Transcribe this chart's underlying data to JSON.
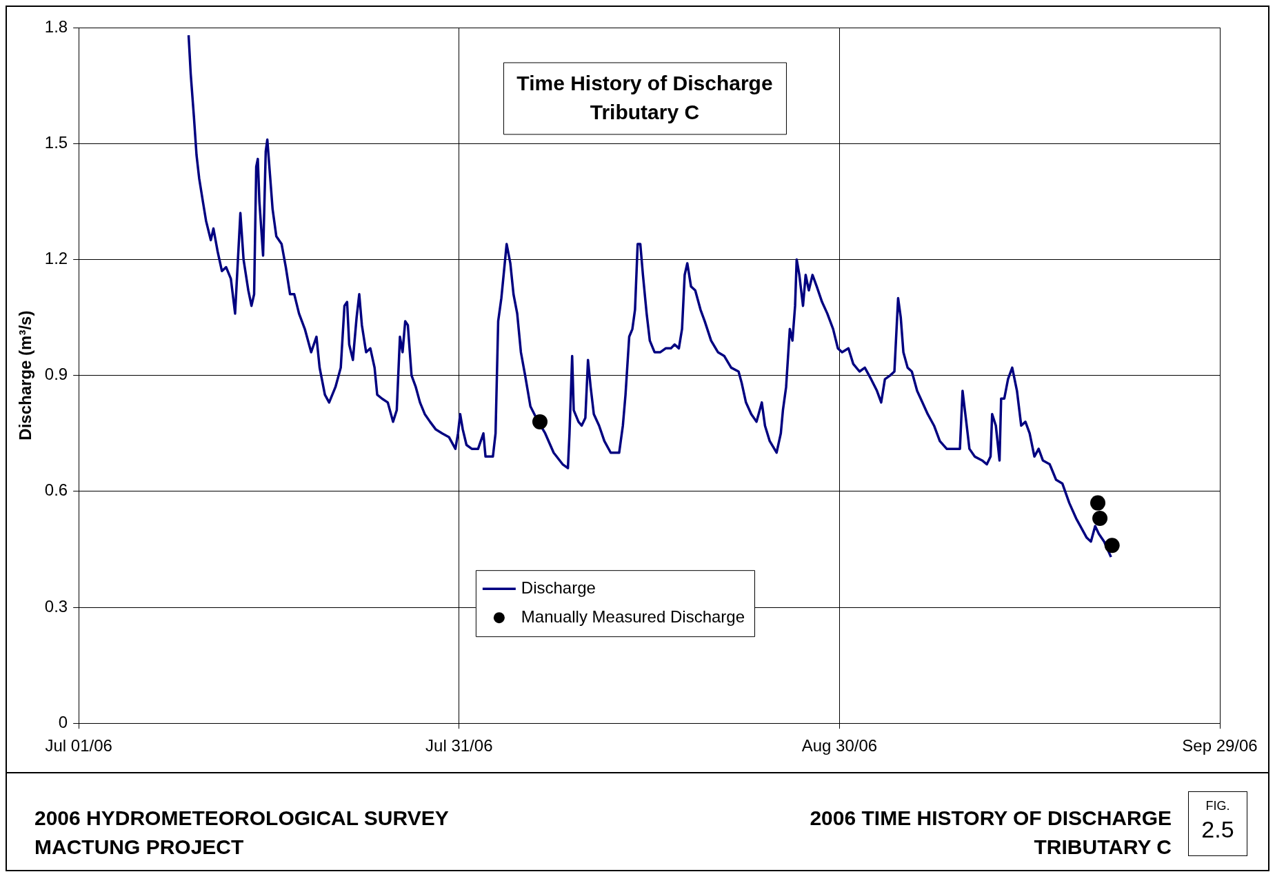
{
  "chart_data": {
    "type": "line",
    "title": "Time History of Discharge",
    "subtitle": "Tributary C",
    "ylabel": "Discharge (m³/s)",
    "xlim": [
      "2006-07-01",
      "2006-09-29"
    ],
    "xticks": [
      {
        "value": "2006-07-01",
        "label": "Jul 01/06"
      },
      {
        "value": "2006-07-31",
        "label": "Jul 31/06"
      },
      {
        "value": "2006-08-30",
        "label": "Aug 30/06"
      },
      {
        "value": "2006-09-29",
        "label": "Sep 29/06"
      }
    ],
    "ylim": [
      0,
      1.8
    ],
    "yticks": [
      0,
      0.3,
      0.6,
      0.9,
      1.2,
      1.5,
      1.8
    ],
    "grid": true,
    "legend": "bottom",
    "annotations": [
      "2006 HYDROMETEOROLOGICAL SURVEY",
      "MACTUNG PROJECT",
      "2006 TIME HISTORY OF DISCHARGE",
      "TRIBUTARY C",
      "FIG.",
      "2.5"
    ],
    "series": [
      {
        "name": "Discharge",
        "type": "line",
        "color": "#000080",
        "marker": "none",
        "x": [
          "2006-07-09T16:00",
          "2006-07-09T20:00",
          "2006-07-10T02:00",
          "2006-07-10T07:00",
          "2006-07-10T12:00",
          "2006-07-10T19:00",
          "2006-07-11T01:00",
          "2006-07-11T10:00",
          "2006-07-11T15:00",
          "2006-07-11T23:00",
          "2006-07-12T07:00",
          "2006-07-12T15:00",
          "2006-07-13T00:00",
          "2006-07-13T08:00",
          "2006-07-13T18:00",
          "2006-07-14T00:00",
          "2006-07-14T09:00",
          "2006-07-14T15:00",
          "2006-07-14T20:00",
          "2006-07-15T00:00",
          "2006-07-15T03:00",
          "2006-07-15T06:00",
          "2006-07-15T13:00",
          "2006-07-15T18:00",
          "2006-07-15T21:00",
          "2006-07-16T02:00",
          "2006-07-16T07:00",
          "2006-07-16T14:00",
          "2006-07-17T00:00",
          "2006-07-17T08:00",
          "2006-07-17T16:00",
          "2006-07-18T00:00",
          "2006-07-18T09:00",
          "2006-07-18T20:00",
          "2006-07-19T08:00",
          "2006-07-19T18:00",
          "2006-07-20T00:00",
          "2006-07-20T10:00",
          "2006-07-20T18:00",
          "2006-07-21T06:00",
          "2006-07-21T16:00",
          "2006-07-21T23:00",
          "2006-07-22T04:00",
          "2006-07-22T08:00",
          "2006-07-22T15:00",
          "2006-07-22T22:00",
          "2006-07-23T03:00",
          "2006-07-23T08:00",
          "2006-07-23T16:00",
          "2006-07-24T00:00",
          "2006-07-24T08:00",
          "2006-07-24T13:00",
          "2006-07-24T22:00",
          "2006-07-25T09:00",
          "2006-07-25T19:00",
          "2006-07-26T02:00",
          "2006-07-26T08:00",
          "2006-07-26T13:00",
          "2006-07-26T18:00",
          "2006-07-26T23:00",
          "2006-07-27T06:00",
          "2006-07-27T14:00",
          "2006-07-27T22:00",
          "2006-07-28T07:00",
          "2006-07-28T17:00",
          "2006-07-29T04:00",
          "2006-07-29T16:00",
          "2006-07-30T05:00",
          "2006-07-30T17:00",
          "2006-07-30T22:00",
          "2006-07-31T02:00",
          "2006-07-31T07:00",
          "2006-07-31T14:00",
          "2006-08-01T00:00",
          "2006-08-01T12:00",
          "2006-08-01T22:00",
          "2006-08-02T02:00",
          "2006-08-02T16:00",
          "2006-08-02T21:00",
          "2006-08-03T02:00",
          "2006-08-03T08:00",
          "2006-08-03T13:00",
          "2006-08-03T18:00",
          "2006-08-04T01:00",
          "2006-08-04T07:00",
          "2006-08-04T14:00",
          "2006-08-04T21:00",
          "2006-08-05T05:00",
          "2006-08-05T15:00",
          "2006-08-06T02:00",
          "2006-08-06T19:00",
          "2006-08-07T11:00",
          "2006-08-08T04:00",
          "2006-08-08T14:00",
          "2006-08-08T17:00",
          "2006-08-08T22:00",
          "2006-08-09T01:00",
          "2006-08-09T10:00",
          "2006-08-09T16:00",
          "2006-08-09T23:00",
          "2006-08-10T04:00",
          "2006-08-10T09:00",
          "2006-08-10T15:00",
          "2006-08-11T01:00",
          "2006-08-11T11:00",
          "2006-08-11T23:00",
          "2006-08-12T15:00",
          "2006-08-12T22:00",
          "2006-08-13T03:00",
          "2006-08-13T10:00",
          "2006-08-13T16:00",
          "2006-08-13T21:00",
          "2006-08-14T02:00",
          "2006-08-14T07:00",
          "2006-08-14T12:00",
          "2006-08-14T19:00",
          "2006-08-15T01:00",
          "2006-08-15T10:00",
          "2006-08-15T21:00",
          "2006-08-16T07:00",
          "2006-08-16T17:00",
          "2006-08-17T00:00",
          "2006-08-17T08:00",
          "2006-08-17T14:00",
          "2006-08-17T19:00",
          "2006-08-18T00:00",
          "2006-08-18T07:00",
          "2006-08-18T15:00",
          "2006-08-19T01:00",
          "2006-08-19T09:00",
          "2006-08-19T21:00",
          "2006-08-20T10:00",
          "2006-08-20T22:00",
          "2006-08-21T11:00",
          "2006-08-22T01:00",
          "2006-08-22T07:00",
          "2006-08-22T15:00",
          "2006-08-23T01:00",
          "2006-08-23T11:00",
          "2006-08-23T21:00",
          "2006-08-24T03:00",
          "2006-08-24T12:00",
          "2006-08-25T01:00",
          "2006-08-25T09:00",
          "2006-08-25T13:00",
          "2006-08-25T19:00",
          "2006-08-26T02:00",
          "2006-08-26T07:00",
          "2006-08-26T12:00",
          "2006-08-26T15:00",
          "2006-08-26T20:00",
          "2006-08-27T03:00",
          "2006-08-27T08:00",
          "2006-08-27T14:00",
          "2006-08-27T21:00",
          "2006-08-28T05:00",
          "2006-08-28T15:00",
          "2006-08-29T01:00",
          "2006-08-29T12:00",
          "2006-08-29T21:00",
          "2006-08-30T05:00",
          "2006-08-30T17:00",
          "2006-08-31T02:00",
          "2006-08-31T14:00",
          "2006-09-01T00:00",
          "2006-09-01T12:00",
          "2006-09-01T23:00",
          "2006-09-02T07:00",
          "2006-09-02T14:00",
          "2006-09-03T00:00",
          "2006-09-03T08:00",
          "2006-09-03T15:00",
          "2006-09-03T20:00",
          "2006-09-04T01:00",
          "2006-09-04T09:00",
          "2006-09-04T17:00",
          "2006-09-05T03:00",
          "2006-09-05T13:00",
          "2006-09-05T23:00",
          "2006-09-06T11:00",
          "2006-09-06T22:00",
          "2006-09-07T11:00",
          "2006-09-08T12:00",
          "2006-09-08T17:00",
          "2006-09-09T00:00",
          "2006-09-09T06:00",
          "2006-09-09T16:00",
          "2006-09-10T06:00",
          "2006-09-10T15:00",
          "2006-09-10T22:00",
          "2006-09-11T01:00",
          "2006-09-11T08:00",
          "2006-09-11T15:00",
          "2006-09-11T18:00",
          "2006-09-12T00:00",
          "2006-09-12T07:00",
          "2006-09-12T15:00",
          "2006-09-13T00:00",
          "2006-09-13T08:00",
          "2006-09-13T16:00",
          "2006-09-14T00:00",
          "2006-09-14T09:00",
          "2006-09-14T17:00",
          "2006-09-15T01:00",
          "2006-09-15T14:00",
          "2006-09-16T02:00",
          "2006-09-16T14:00",
          "2006-09-17T03:00",
          "2006-09-17T16:00",
          "2006-09-18T04:00",
          "2006-09-18T12:00",
          "2006-09-18T20:00",
          "2006-09-19T04:00",
          "2006-09-19T11:00",
          "2006-09-19T21:00",
          "2006-09-20T10:00"
        ],
        "values": [
          1.78,
          1.68,
          1.57,
          1.47,
          1.41,
          1.35,
          1.3,
          1.25,
          1.28,
          1.22,
          1.17,
          1.18,
          1.15,
          1.06,
          1.32,
          1.2,
          1.12,
          1.08,
          1.11,
          1.44,
          1.46,
          1.35,
          1.21,
          1.48,
          1.51,
          1.42,
          1.33,
          1.26,
          1.24,
          1.18,
          1.11,
          1.11,
          1.06,
          1.02,
          0.96,
          1.0,
          0.92,
          0.85,
          0.83,
          0.87,
          0.92,
          1.08,
          1.09,
          0.98,
          0.94,
          1.05,
          1.11,
          1.03,
          0.96,
          0.97,
          0.92,
          0.85,
          0.84,
          0.83,
          0.78,
          0.81,
          1.0,
          0.96,
          1.04,
          1.03,
          0.9,
          0.87,
          0.83,
          0.8,
          0.78,
          0.76,
          0.75,
          0.74,
          0.71,
          0.75,
          0.8,
          0.76,
          0.72,
          0.71,
          0.71,
          0.75,
          0.69,
          0.69,
          0.75,
          1.04,
          1.1,
          1.17,
          1.24,
          1.19,
          1.11,
          1.06,
          0.96,
          0.9,
          0.82,
          0.79,
          0.75,
          0.7,
          0.67,
          0.66,
          0.75,
          0.95,
          0.81,
          0.78,
          0.77,
          0.79,
          0.94,
          0.87,
          0.8,
          0.77,
          0.73,
          0.7,
          0.7,
          0.77,
          0.85,
          1.0,
          1.02,
          1.07,
          1.24,
          1.24,
          1.16,
          1.06,
          0.99,
          0.96,
          0.96,
          0.97,
          0.97,
          0.98,
          0.97,
          1.02,
          1.16,
          1.19,
          1.13,
          1.12,
          1.07,
          1.04,
          0.99,
          0.96,
          0.95,
          0.92,
          0.91,
          0.88,
          0.83,
          0.8,
          0.78,
          0.83,
          0.77,
          0.73,
          0.7,
          0.75,
          0.81,
          0.87,
          1.02,
          0.99,
          1.08,
          1.2,
          1.16,
          1.08,
          1.16,
          1.12,
          1.16,
          1.13,
          1.09,
          1.06,
          1.02,
          0.97,
          0.96,
          0.97,
          0.93,
          0.91,
          0.92,
          0.89,
          0.86,
          0.83,
          0.89,
          0.9,
          0.91,
          1.1,
          1.05,
          0.96,
          0.92,
          0.91,
          0.86,
          0.83,
          0.8,
          0.77,
          0.73,
          0.71,
          0.71,
          0.86,
          0.78,
          0.71,
          0.69,
          0.68,
          0.67,
          0.69,
          0.8,
          0.77,
          0.68,
          0.84,
          0.84,
          0.89,
          0.92,
          0.86,
          0.77,
          0.78,
          0.75,
          0.69,
          0.71,
          0.68,
          0.67,
          0.63,
          0.62,
          0.57,
          0.53,
          0.5,
          0.48,
          0.47,
          0.51,
          0.49,
          0.47,
          0.43
        ]
      },
      {
        "name": "Manually Measured Discharge",
        "type": "scatter",
        "color": "#000000",
        "marker": "circle",
        "x": [
          "2006-08-06T09:00",
          "2006-09-19T09:00",
          "2006-09-19T13:00",
          "2006-09-20T12:00"
        ],
        "values": [
          0.78,
          0.57,
          0.53,
          0.46
        ]
      }
    ]
  }
}
